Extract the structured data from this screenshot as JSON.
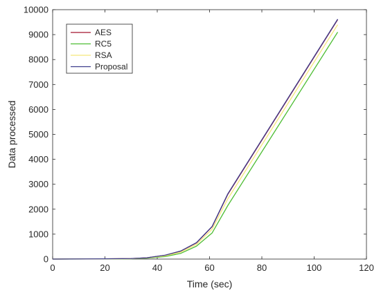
{
  "chart_data": {
    "type": "line",
    "title": "",
    "xlabel": "Time (sec)",
    "ylabel": "Data processed",
    "xlim": [
      0,
      120
    ],
    "ylim": [
      0,
      10000
    ],
    "xticks": [
      "0",
      "20",
      "40",
      "60",
      "80",
      "100",
      "120"
    ],
    "yticks": [
      "0",
      "1000",
      "2000",
      "3000",
      "4000",
      "5000",
      "6000",
      "7000",
      "8000",
      "9000",
      "10000"
    ],
    "grid": false,
    "legend": "top-left",
    "series": [
      {
        "name": "AES",
        "color": "#a2142f",
        "x": [
          0,
          20,
          30,
          36,
          43,
          49,
          55,
          61,
          67,
          109
        ],
        "y": [
          0,
          10,
          20,
          50,
          150,
          320,
          650,
          1300,
          2600,
          9600
        ]
      },
      {
        "name": "RC5",
        "color": "#4dbd33",
        "x": [
          0,
          20,
          30,
          36,
          43,
          49,
          55,
          61,
          67,
          109
        ],
        "y": [
          0,
          5,
          12,
          35,
          100,
          230,
          520,
          1050,
          2150,
          9100
        ]
      },
      {
        "name": "RSA",
        "color": "#f5e67a",
        "x": [
          0,
          20,
          30,
          36,
          43,
          49,
          55,
          61,
          67,
          109
        ],
        "y": [
          0,
          8,
          16,
          45,
          130,
          280,
          590,
          1200,
          2420,
          9400
        ]
      },
      {
        "name": "Proposal",
        "color": "#3c3c8c",
        "x": [
          0,
          20,
          30,
          36,
          43,
          49,
          55,
          61,
          67,
          109
        ],
        "y": [
          0,
          11,
          21,
          52,
          155,
          325,
          660,
          1310,
          2620,
          9620
        ]
      }
    ]
  }
}
